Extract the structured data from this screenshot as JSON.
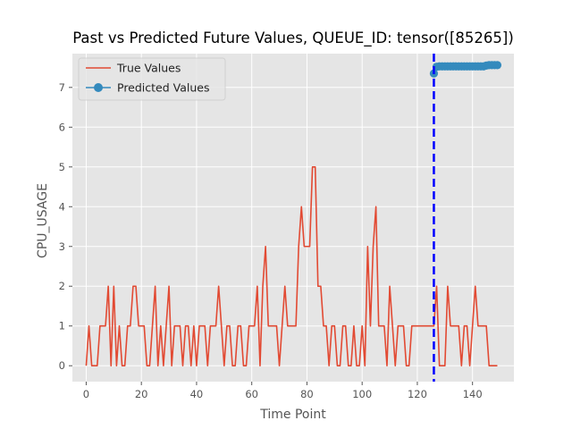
{
  "chart_data": {
    "type": "line",
    "title": "Past vs Predicted Future Values, QUEUE_ID: tensor([85265])",
    "xlabel": "Time Point",
    "ylabel": "CPU_USAGE",
    "xlim": [
      -5,
      155
    ],
    "ylim": [
      -0.4,
      7.85
    ],
    "xticks": [
      0,
      20,
      40,
      60,
      80,
      100,
      120,
      140
    ],
    "yticks": [
      0,
      1,
      2,
      3,
      4,
      5,
      6,
      7
    ],
    "grid": true,
    "legend_position": "top-left",
    "series": [
      {
        "name": "True Values",
        "color": "#E24A33",
        "marker": "none",
        "x": [
          0,
          1,
          2,
          3,
          4,
          5,
          6,
          7,
          8,
          9,
          10,
          11,
          12,
          13,
          14,
          15,
          16,
          17,
          18,
          19,
          20,
          21,
          22,
          23,
          24,
          25,
          26,
          27,
          28,
          29,
          30,
          31,
          32,
          33,
          34,
          35,
          36,
          37,
          38,
          39,
          40,
          41,
          42,
          43,
          44,
          45,
          46,
          47,
          48,
          49,
          50,
          51,
          52,
          53,
          54,
          55,
          56,
          57,
          58,
          59,
          60,
          61,
          62,
          63,
          64,
          65,
          66,
          67,
          68,
          69,
          70,
          71,
          72,
          73,
          74,
          75,
          76,
          77,
          78,
          79,
          80,
          81,
          82,
          83,
          84,
          85,
          86,
          87,
          88,
          89,
          90,
          91,
          92,
          93,
          94,
          95,
          96,
          97,
          98,
          99,
          100,
          101,
          102,
          103,
          104,
          105,
          106,
          107,
          108,
          109,
          110,
          111,
          112,
          113,
          114,
          115,
          116,
          117,
          118,
          119,
          120,
          121,
          122,
          123,
          124,
          125,
          126,
          127,
          128,
          129,
          130,
          131,
          132,
          133,
          134,
          135,
          136,
          137,
          138,
          139,
          140,
          141,
          142,
          143,
          144,
          145,
          146,
          147,
          148,
          149
        ],
        "values": [
          0,
          1,
          0,
          0,
          0,
          1,
          1,
          1,
          2,
          0,
          2,
          0,
          1,
          0,
          0,
          1,
          1,
          2,
          2,
          1,
          1,
          1,
          0,
          0,
          1,
          2,
          0,
          1,
          0,
          1,
          2,
          0,
          1,
          1,
          1,
          0,
          1,
          1,
          0,
          1,
          0,
          1,
          1,
          1,
          0,
          1,
          1,
          1,
          2,
          1,
          0,
          1,
          1,
          0,
          0,
          1,
          1,
          0,
          0,
          1,
          1,
          1,
          2,
          0,
          2,
          3,
          1,
          1,
          1,
          1,
          0,
          1,
          2,
          1,
          1,
          1,
          1,
          3,
          4,
          3,
          3,
          3,
          5,
          5,
          2,
          2,
          1,
          1,
          0,
          1,
          1,
          0,
          0,
          1,
          1,
          0,
          0,
          1,
          0,
          0,
          1,
          0,
          3,
          1,
          3,
          4,
          1,
          1,
          1,
          0,
          2,
          1,
          0,
          1,
          1,
          1,
          0,
          0,
          1,
          1,
          1,
          1,
          1,
          1,
          1,
          1,
          1,
          2,
          0,
          0,
          0,
          2,
          1,
          1,
          1,
          1,
          0,
          1,
          1,
          0,
          1,
          2,
          1,
          1,
          1,
          1,
          0,
          0,
          0,
          0
        ]
      },
      {
        "name": "Predicted Values",
        "color": "#348ABD",
        "marker": "circle",
        "x": [
          126,
          127,
          128,
          129,
          130,
          131,
          132,
          133,
          134,
          135,
          136,
          137,
          138,
          139,
          140,
          141,
          142,
          143,
          144,
          145,
          146,
          147,
          148,
          149
        ],
        "values": [
          7.35,
          7.52,
          7.53,
          7.53,
          7.53,
          7.53,
          7.53,
          7.53,
          7.53,
          7.53,
          7.53,
          7.53,
          7.53,
          7.53,
          7.53,
          7.53,
          7.53,
          7.53,
          7.53,
          7.55,
          7.56,
          7.56,
          7.56,
          7.56
        ]
      }
    ],
    "vertical_line": {
      "x": 126,
      "color": "#0000FF",
      "style": "dashed"
    }
  }
}
